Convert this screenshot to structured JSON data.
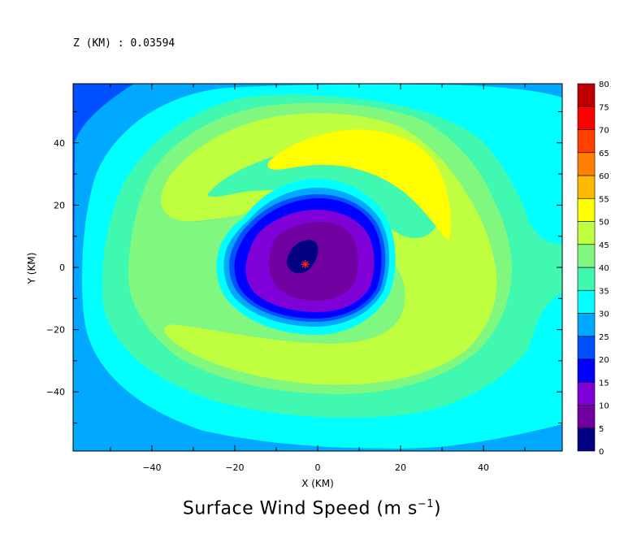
{
  "header": {
    "z_label": "Z (KM) : 0.03594"
  },
  "chart_data": {
    "type": "contour",
    "title": "Surface Wind Speed (m s",
    "title_superscript": "−1",
    "title_tail": ")",
    "xlabel": "X (KM)",
    "ylabel": "Y (KM)",
    "xlim": [
      -59,
      59
    ],
    "ylim": [
      -59,
      59
    ],
    "x_ticks": [
      -40,
      -20,
      0,
      20,
      40
    ],
    "y_ticks": [
      -40,
      -20,
      0,
      20,
      40
    ],
    "colorbar": {
      "levels": [
        0,
        5,
        10,
        15,
        20,
        25,
        30,
        35,
        40,
        45,
        50,
        55,
        60,
        65,
        70,
        75,
        80
      ],
      "labels": [
        "0",
        "5",
        "10",
        "15",
        "20",
        "25",
        "30",
        "35",
        "40",
        "45",
        "50",
        "55",
        "60",
        "65",
        "70",
        "75",
        "80"
      ],
      "colors": [
        "#000080",
        "#7000a0",
        "#8000d8",
        "#0000ff",
        "#0050ff",
        "#00a8ff",
        "#00ffff",
        "#40f8b0",
        "#80f880",
        "#c0ff40",
        "#ffff00",
        "#ffb800",
        "#ff8000",
        "#ff4000",
        "#ff0000",
        "#c00000"
      ]
    },
    "center_marker": {
      "x": -3,
      "y": 1
    },
    "grid": false
  }
}
